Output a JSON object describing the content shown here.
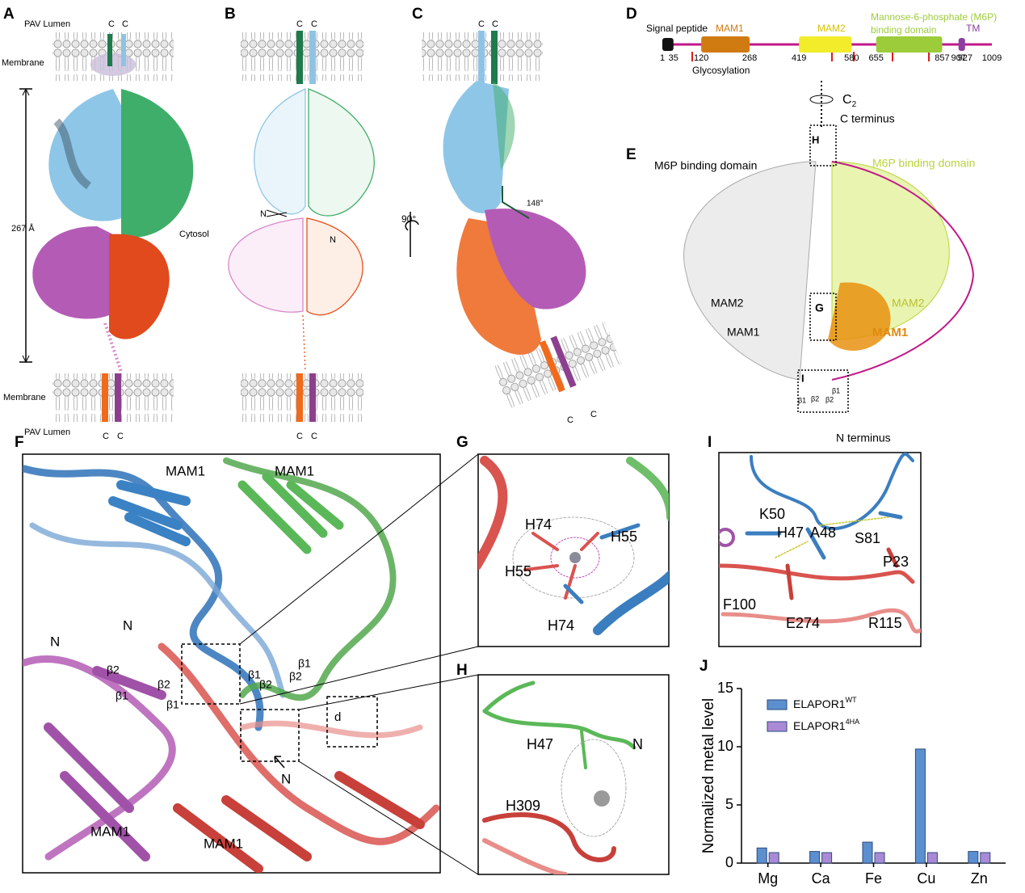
{
  "panels": {
    "A": {
      "label": "A",
      "texts": [
        "PAV Lumen",
        "C",
        "C",
        "Membrane",
        "267 Å",
        "Cytosol",
        "Membrane",
        "PAV Lumen",
        "C",
        "C"
      ]
    },
    "B": {
      "label": "B",
      "texts": [
        "C",
        "C",
        "N",
        "N",
        "C",
        "C"
      ]
    },
    "C": {
      "label": "C",
      "texts": [
        "C",
        "C",
        "90°",
        "148°",
        "C",
        "C"
      ]
    },
    "D": {
      "label": "D",
      "texts": [
        "Signal peptide",
        "MAM1",
        "MAM2",
        "Mannose-6-phosphate (M6P)",
        "binding domain",
        "TM",
        "Glycosylation"
      ],
      "positions": [
        1,
        35,
        120,
        268,
        419,
        580,
        655,
        857,
        907,
        927,
        1009
      ]
    },
    "E": {
      "label": "E",
      "axis": {
        "letter": "C",
        "subscript": "2"
      },
      "texts": [
        "C terminus",
        "M6P binding domain",
        "M6P binding domain",
        "H",
        "MAM2",
        "MAM1",
        "G",
        "MAM2",
        "MAM1",
        "I",
        "β1",
        "β2",
        "β2",
        "β1",
        "N terminus"
      ]
    },
    "F": {
      "label": "F",
      "texts": [
        "MAM1",
        "MAM1",
        "N",
        "N",
        "β1",
        "β2",
        "β1",
        "β2",
        "β2",
        "β1",
        "β2",
        "β1",
        "d",
        "N",
        "MAM1",
        "MAM1"
      ]
    },
    "G": {
      "label": "G",
      "texts": [
        "H74",
        "H55",
        "H55",
        "H74"
      ]
    },
    "H": {
      "label": "H",
      "texts": [
        "H47",
        "N",
        "H309"
      ]
    },
    "I": {
      "label": "I",
      "texts": [
        "K50",
        "H47",
        "A48",
        "S81",
        "P23",
        "F100",
        "E274",
        "R115"
      ]
    },
    "J": {
      "label": "J"
    }
  },
  "chart_data": {
    "type": "bar",
    "y_label": "Normalized metal level",
    "categories": [
      "Mg",
      "Ca",
      "Fe",
      "Cu",
      "Zn"
    ],
    "series": [
      {
        "name": "ELAPOR1",
        "superscript": "WT",
        "color": "#5b8fd0",
        "values": [
          1.3,
          1.0,
          1.8,
          9.8,
          1.0
        ]
      },
      {
        "name": "ELAPOR1",
        "superscript": "4HA",
        "color": "#a98ad6",
        "values": [
          0.9,
          0.9,
          0.9,
          0.9,
          0.9
        ]
      }
    ],
    "ylim": [
      0,
      15
    ],
    "yticks": [
      0,
      5,
      10,
      15
    ]
  }
}
